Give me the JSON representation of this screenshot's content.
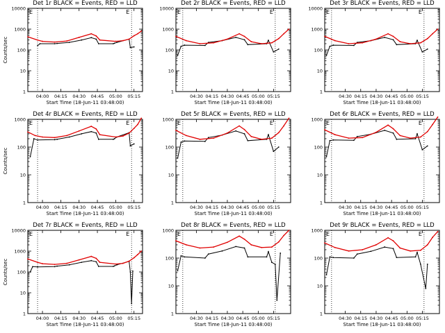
{
  "chart_data": [
    {
      "type": "line",
      "title": "Det 1r BLACK = Events, RED = LLD",
      "xlabel": "Start Time (18-Jun-11 03:48:00)",
      "ylabel": "Counts/sec",
      "xlim": [
        "03:48:00",
        "05:22:00"
      ],
      "ylim": [
        1,
        10000
      ],
      "yscale": "log",
      "xticks": [
        "04:00",
        "04:15",
        "04:30",
        "04:45",
        "05:00",
        "05:15"
      ],
      "yticks": [
        "1",
        "10",
        "100",
        "1000",
        "10000"
      ],
      "markers": [
        {
          "time": "03:56:00",
          "label": "E"
        },
        {
          "time": "05:13:00",
          "label": "E"
        }
      ],
      "series": [
        {
          "name": "Events",
          "color": "#000000",
          "x": [
            "03:56:00",
            "03:58:00",
            "04:10:00",
            "04:12:00",
            "04:22:00",
            "04:32:00",
            "04:40:00",
            "04:44:00",
            "04:46:00",
            "04:58:00",
            "04:59:00",
            "05:01:00",
            "05:11:00",
            "05:12:00",
            "05:15:00"
          ],
          "y": [
            160,
            200,
            200,
            205,
            230,
            300,
            390,
            330,
            200,
            200,
            210,
            230,
            330,
            130,
            140
          ]
        },
        {
          "name": "LLD",
          "color": "#e00000",
          "x": [
            "03:48:00",
            "03:56:00",
            "04:00:00",
            "04:10:00",
            "04:20:00",
            "04:30:00",
            "04:40:00",
            "04:44:00",
            "04:47:00",
            "05:00:00",
            "05:06:00",
            "05:11:00",
            "05:15:00",
            "05:18:00",
            "05:21:00"
          ],
          "y": [
            430,
            300,
            260,
            240,
            270,
            400,
            600,
            470,
            300,
            260,
            280,
            330,
            480,
            600,
            800
          ]
        }
      ]
    },
    {
      "type": "line",
      "title": "Det 2r BLACK = Events, RED = LLD",
      "xlabel": "Start Time (18-Jun-11 03:48:00)",
      "ylabel": "",
      "xlim": [
        "04:18:00",
        "05:25:00"
      ],
      "ylim": [
        1,
        10000
      ],
      "yscale": "log",
      "xticks": [
        "04:30",
        "04:15",
        "04:30",
        "04:45",
        "05:00",
        "05:15"
      ],
      "yticks": [
        "1",
        "10",
        "100",
        "1000",
        "10000"
      ],
      "markers": [
        {
          "time": "04:22:00",
          "label": "E"
        },
        {
          "time": "05:16:00",
          "label": "E"
        }
      ],
      "series": [
        {
          "name": "Events",
          "color": "#000000",
          "x": [
            "04:19:00",
            "04:21:00",
            "04:23:00",
            "04:35:00",
            "04:37:00",
            "04:45:00",
            "04:53:00",
            "04:58:00",
            "05:00:00",
            "05:11:00",
            "05:12:00",
            "05:15:00",
            "05:18:00"
          ],
          "y": [
            55,
            150,
            170,
            165,
            230,
            280,
            400,
            310,
            180,
            200,
            290,
            80,
            110
          ]
        },
        {
          "name": "LLD",
          "color": "#e00000",
          "x": [
            "04:18:00",
            "04:24:00",
            "04:32:00",
            "04:40:00",
            "04:48:00",
            "04:55:00",
            "04:58:00",
            "05:02:00",
            "05:08:00",
            "05:14:00",
            "05:18:00",
            "05:21:00",
            "05:24:00"
          ],
          "y": [
            450,
            280,
            200,
            220,
            330,
            600,
            450,
            250,
            200,
            220,
            350,
            600,
            1000
          ]
        }
      ]
    },
    {
      "type": "line",
      "title": "Det 3r BLACK = Events, RED = LLD",
      "xlabel": "Start Time (18-Jun-11 03:48:00)",
      "ylabel": "",
      "xlim": [
        "04:18:00",
        "05:25:00"
      ],
      "ylim": [
        1,
        10000
      ],
      "yscale": "log",
      "xticks": [
        "04:30",
        "04:15",
        "04:30",
        "04:45",
        "05:00",
        "05:15"
      ],
      "yticks": [
        "1",
        "10",
        "100",
        "1000",
        "10000"
      ],
      "markers": [
        {
          "time": "04:22:00",
          "label": "E"
        },
        {
          "time": "05:16:00",
          "label": "E"
        }
      ],
      "series": [
        {
          "name": "Events",
          "color": "#000000",
          "x": [
            "04:19:00",
            "04:21:00",
            "04:23:00",
            "04:35:00",
            "04:37:00",
            "04:45:00",
            "04:53:00",
            "04:58:00",
            "05:00:00",
            "05:11:00",
            "05:12:00",
            "05:15:00",
            "05:18:00"
          ],
          "y": [
            55,
            150,
            170,
            165,
            230,
            280,
            400,
            310,
            180,
            200,
            290,
            80,
            110
          ]
        },
        {
          "name": "LLD",
          "color": "#e00000",
          "x": [
            "04:18:00",
            "04:24:00",
            "04:32:00",
            "04:40:00",
            "04:48:00",
            "04:55:00",
            "04:58:00",
            "05:02:00",
            "05:08:00",
            "05:14:00",
            "05:18:00",
            "05:21:00",
            "05:24:00"
          ],
          "y": [
            450,
            280,
            200,
            220,
            330,
            600,
            450,
            250,
            200,
            220,
            350,
            600,
            1000
          ]
        }
      ]
    },
    {
      "type": "line",
      "title": "Det 4r BLACK = Events, RED = LLD",
      "xlabel": "Start Time (18-Jun-11 03:48:00)",
      "ylabel": "Counts/sec",
      "xlim": [
        "03:48:00",
        "05:22:00"
      ],
      "ylim": [
        1,
        1000
      ],
      "yscale": "log",
      "xticks": [
        "04:00",
        "04:15",
        "04:30",
        "04:45",
        "05:00",
        "05:15"
      ],
      "yticks": [
        "1",
        "10",
        "100",
        "1000"
      ],
      "markers": [
        {
          "time": "03:56:00",
          "label": "E"
        },
        {
          "time": "05:13:00",
          "label": "E"
        }
      ],
      "series": [
        {
          "name": "Events",
          "color": "#000000",
          "x": [
            "03:50:00",
            "03:53:00",
            "03:56:00",
            "04:10:00",
            "04:12:00",
            "04:22:00",
            "04:32:00",
            "04:40:00",
            "04:44:00",
            "04:46:00",
            "04:58:00",
            "04:59:00",
            "05:01:00",
            "05:11:00",
            "05:12:00",
            "05:15:00"
          ],
          "y": [
            45,
            200,
            180,
            185,
            190,
            230,
            300,
            360,
            320,
            190,
            190,
            200,
            230,
            330,
            110,
            130
          ]
        },
        {
          "name": "LLD",
          "color": "#e00000",
          "x": [
            "03:48:00",
            "03:54:00",
            "04:00:00",
            "04:10:00",
            "04:20:00",
            "04:30:00",
            "04:40:00",
            "04:44:00",
            "04:47:00",
            "05:00:00",
            "05:06:00",
            "05:11:00",
            "05:15:00",
            "05:18:00",
            "05:21:00"
          ],
          "y": [
            350,
            260,
            230,
            220,
            260,
            380,
            560,
            450,
            280,
            230,
            250,
            320,
            470,
            650,
            1100
          ]
        }
      ]
    },
    {
      "type": "line",
      "title": "Det 5r BLACK = Events, RED = LLD",
      "xlabel": "Start Time (18-Jun-11 03:48:00)",
      "ylabel": "",
      "xlim": [
        "04:18:00",
        "05:25:00"
      ],
      "ylim": [
        1,
        1000
      ],
      "yscale": "log",
      "xticks": [
        "04:30",
        "04:15",
        "04:30",
        "04:45",
        "05:00",
        "05:15"
      ],
      "yticks": [
        "1",
        "10",
        "100",
        "1000"
      ],
      "markers": [
        {
          "time": "04:22:00",
          "label": "E"
        },
        {
          "time": "05:16:00",
          "label": "E"
        }
      ],
      "series": [
        {
          "name": "Events",
          "color": "#000000",
          "x": [
            "04:19:00",
            "04:21:00",
            "04:23:00",
            "04:35:00",
            "04:37:00",
            "04:45:00",
            "04:53:00",
            "04:58:00",
            "05:00:00",
            "05:11:00",
            "05:12:00",
            "05:15:00",
            "05:18:00"
          ],
          "y": [
            40,
            150,
            165,
            160,
            220,
            270,
            380,
            300,
            170,
            190,
            280,
            70,
            100
          ]
        },
        {
          "name": "LLD",
          "color": "#e00000",
          "x": [
            "04:18:00",
            "04:24:00",
            "04:32:00",
            "04:40:00",
            "04:48:00",
            "04:55:00",
            "04:58:00",
            "05:02:00",
            "05:08:00",
            "05:14:00",
            "05:18:00",
            "05:21:00",
            "05:24:00"
          ],
          "y": [
            400,
            260,
            190,
            210,
            320,
            580,
            430,
            240,
            190,
            210,
            330,
            580,
            1100
          ]
        }
      ]
    },
    {
      "type": "line",
      "title": "Det 6r BLACK = Events, RED = LLD",
      "xlabel": "Start Time (18-Jun-11 03:48:00)",
      "ylabel": "",
      "xlim": [
        "04:18:00",
        "05:25:00"
      ],
      "ylim": [
        1,
        1000
      ],
      "yscale": "log",
      "xticks": [
        "04:30",
        "04:15",
        "04:30",
        "04:45",
        "05:00",
        "05:15"
      ],
      "yticks": [
        "1",
        "10",
        "100",
        "1000"
      ],
      "markers": [
        {
          "time": "04:22:00",
          "label": "E"
        },
        {
          "time": "05:16:00",
          "label": "E"
        }
      ],
      "series": [
        {
          "name": "Events",
          "color": "#000000",
          "x": [
            "04:19:00",
            "04:21:00",
            "04:23:00",
            "04:35:00",
            "04:37:00",
            "04:45:00",
            "04:53:00",
            "04:58:00",
            "05:00:00",
            "05:11:00",
            "05:12:00",
            "05:15:00",
            "05:18:00"
          ],
          "y": [
            45,
            170,
            180,
            175,
            240,
            290,
            400,
            320,
            190,
            200,
            300,
            80,
            110
          ]
        },
        {
          "name": "LLD",
          "color": "#e00000",
          "x": [
            "04:18:00",
            "04:24:00",
            "04:32:00",
            "04:40:00",
            "04:48:00",
            "04:55:00",
            "04:58:00",
            "05:02:00",
            "05:08:00",
            "05:14:00",
            "05:18:00",
            "05:21:00",
            "05:24:00"
          ],
          "y": [
            420,
            280,
            210,
            220,
            340,
            620,
            460,
            260,
            210,
            230,
            360,
            650,
            1200
          ]
        }
      ]
    },
    {
      "type": "line",
      "title": "Det 7r BLACK = Events, RED = LLD",
      "xlabel": "Start Time (18-Jun-11 03:48:00)",
      "ylabel": "Counts/sec",
      "xlim": [
        "03:48:00",
        "05:22:00"
      ],
      "ylim": [
        1,
        10000
      ],
      "yscale": "log",
      "xticks": [
        "04:00",
        "04:15",
        "04:30",
        "04:45",
        "05:00",
        "05:15"
      ],
      "yticks": [
        "1",
        "10",
        "100",
        "1000",
        "10000"
      ],
      "markers": [
        {
          "time": "03:56:00",
          "label": "E"
        },
        {
          "time": "05:13:00",
          "label": "E"
        }
      ],
      "series": [
        {
          "name": "Events",
          "color": "#000000",
          "x": [
            "03:50:00",
            "03:52:00",
            "03:56:00",
            "04:10:00",
            "04:12:00",
            "04:22:00",
            "04:32:00",
            "04:40:00",
            "04:44:00",
            "04:46:00",
            "04:58:00",
            "04:59:00",
            "05:01:00",
            "05:11:00",
            "05:12:00",
            "05:13:00",
            "05:14:00"
          ],
          "y": [
            100,
            180,
            175,
            180,
            190,
            220,
            290,
            350,
            310,
            185,
            185,
            195,
            220,
            320,
            100,
            3,
            110
          ]
        },
        {
          "name": "LLD",
          "color": "#e00000",
          "x": [
            "03:48:00",
            "03:56:00",
            "04:00:00",
            "04:10:00",
            "04:20:00",
            "04:30:00",
            "04:40:00",
            "04:44:00",
            "04:47:00",
            "05:00:00",
            "05:06:00",
            "05:11:00",
            "05:15:00",
            "05:18:00",
            "05:21:00"
          ],
          "y": [
            420,
            290,
            250,
            230,
            260,
            380,
            560,
            450,
            290,
            240,
            260,
            330,
            480,
            680,
            1000
          ]
        }
      ]
    },
    {
      "type": "line",
      "title": "Det 8r BLACK = Events, RED = LLD",
      "xlabel": "Start Time (18-Jun-11 03:48:00)",
      "ylabel": "",
      "xlim": [
        "04:18:00",
        "05:25:00"
      ],
      "ylim": [
        1,
        1000
      ],
      "yscale": "log",
      "xticks": [
        "04:30",
        "04:15",
        "04:30",
        "04:45",
        "05:00",
        "05:15"
      ],
      "yticks": [
        "1",
        "10",
        "100",
        "1000"
      ],
      "markers": [
        {
          "time": "04:22:00",
          "label": "E"
        },
        {
          "time": "05:16:00",
          "label": "E"
        }
      ],
      "series": [
        {
          "name": "Events",
          "color": "#000000",
          "x": [
            "04:19:00",
            "04:21:00",
            "04:23:00",
            "04:35:00",
            "04:37:00",
            "04:45:00",
            "04:53:00",
            "04:58:00",
            "05:00:00",
            "05:11:00",
            "05:12:00",
            "05:14:00",
            "05:16:00",
            "05:17:00",
            "05:19:00"
          ],
          "y": [
            35,
            120,
            110,
            100,
            140,
            180,
            260,
            230,
            110,
            110,
            170,
            70,
            60,
            3,
            150
          ]
        },
        {
          "name": "LLD",
          "color": "#e00000",
          "x": [
            "04:18:00",
            "04:24:00",
            "04:32:00",
            "04:40:00",
            "04:48:00",
            "04:55:00",
            "04:58:00",
            "05:02:00",
            "05:08:00",
            "05:14:00",
            "05:18:00",
            "05:21:00",
            "05:24:00"
          ],
          "y": [
            420,
            300,
            230,
            250,
            370,
            620,
            480,
            300,
            240,
            250,
            380,
            650,
            1000
          ]
        }
      ]
    },
    {
      "type": "line",
      "title": "Det 9r BLACK = Events, RED = LLD",
      "xlabel": "Start Time (18-Jun-11 03:48:00)",
      "ylabel": "",
      "xlim": [
        "04:18:00",
        "05:25:00"
      ],
      "ylim": [
        1,
        1000
      ],
      "yscale": "log",
      "xticks": [
        "04:30",
        "04:15",
        "04:30",
        "04:45",
        "05:00",
        "05:15"
      ],
      "yticks": [
        "1",
        "10",
        "100",
        "1000"
      ],
      "markers": [
        {
          "time": "04:22:00",
          "label": "E"
        },
        {
          "time": "05:16:00",
          "label": "E"
        }
      ],
      "series": [
        {
          "name": "Events",
          "color": "#000000",
          "x": [
            "04:19:00",
            "04:21:00",
            "04:23:00",
            "04:35:00",
            "04:37:00",
            "04:45:00",
            "04:53:00",
            "04:58:00",
            "05:00:00",
            "05:11:00",
            "05:12:00",
            "05:14:00",
            "05:17:00",
            "05:18:00"
          ],
          "y": [
            25,
            110,
            105,
            100,
            140,
            175,
            250,
            220,
            105,
            110,
            160,
            60,
            8,
            60
          ]
        },
        {
          "name": "LLD",
          "color": "#e00000",
          "x": [
            "04:18:00",
            "04:24:00",
            "04:32:00",
            "04:40:00",
            "04:48:00",
            "04:55:00",
            "04:58:00",
            "05:02:00",
            "05:08:00",
            "05:14:00",
            "05:18:00",
            "05:21:00",
            "05:24:00"
          ],
          "y": [
            350,
            240,
            180,
            200,
            300,
            540,
            420,
            230,
            180,
            190,
            300,
            560,
            900
          ]
        }
      ]
    }
  ]
}
